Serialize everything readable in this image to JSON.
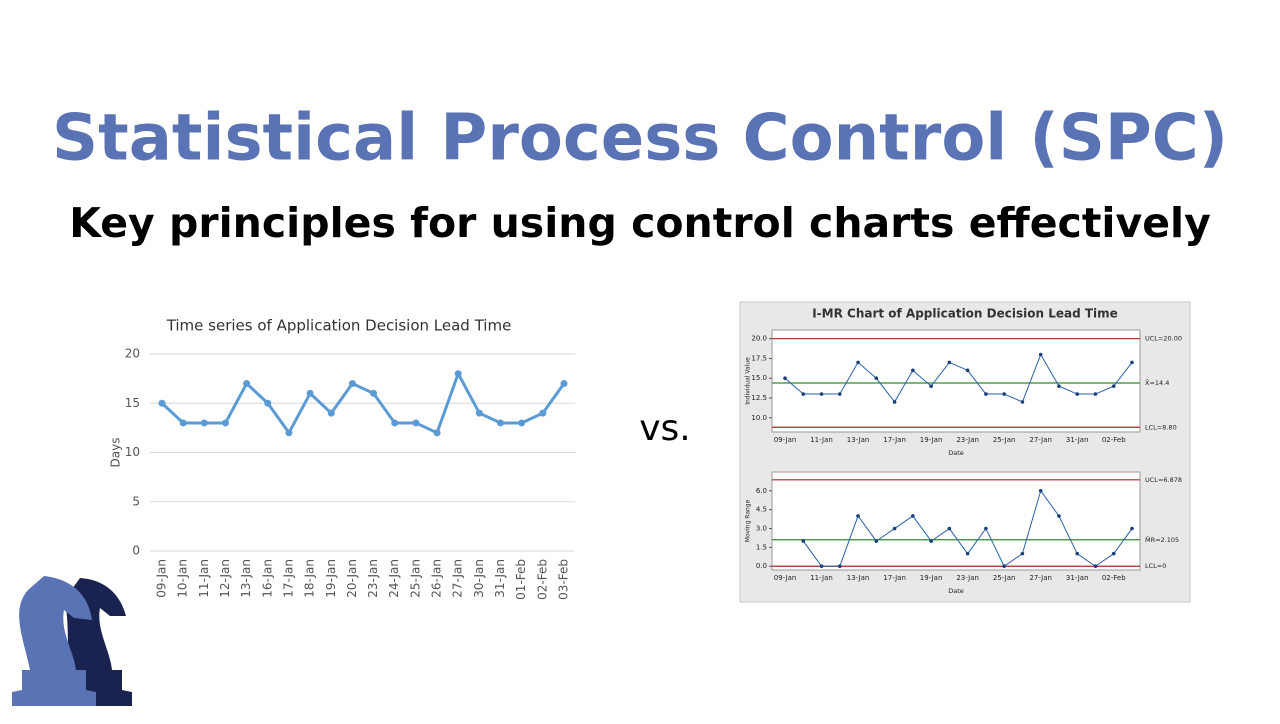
{
  "slide": {
    "title": "Statistical Process Control (SPC)",
    "subtitle": "Key principles for using control charts effectively",
    "separator": "vs."
  },
  "chart_data": [
    {
      "type": "line",
      "title": "Time series of Application Decision Lead Time",
      "y_label": "Days",
      "categories": [
        "09-Jan",
        "10-Jan",
        "11-Jan",
        "12-Jan",
        "13-Jan",
        "16-Jan",
        "17-Jan",
        "18-Jan",
        "19-Jan",
        "20-Jan",
        "23-Jan",
        "24-Jan",
        "25-Jan",
        "26-Jan",
        "27-Jan",
        "30-Jan",
        "31-Jan",
        "01-Feb",
        "02-Feb",
        "03-Feb"
      ],
      "series": [
        {
          "name": "Days",
          "color": "#5b9bd5",
          "values": [
            15,
            13,
            13,
            13,
            17,
            15,
            12,
            16,
            14,
            17,
            16,
            13,
            13,
            12,
            18,
            14,
            13,
            13,
            14,
            17
          ]
        }
      ],
      "ylim": [
        0,
        20
      ],
      "yticks": [
        0,
        5,
        10,
        15,
        20
      ],
      "grid": true
    },
    {
      "type": "line",
      "title": "I-MR Chart of Application Decision Lead Time",
      "y_label": "Individual Value",
      "x_label": "Date",
      "categories": [
        "09-Jan",
        null,
        "11-Jan",
        null,
        "13-Jan",
        null,
        "17-Jan",
        null,
        "19-Jan",
        null,
        "23-Jan",
        null,
        "25-Jan",
        null,
        "27-Jan",
        null,
        "31-Jan",
        null,
        "02-Feb",
        null
      ],
      "series": [
        {
          "name": "Individual Value",
          "color": "#2a62a8",
          "values": [
            15,
            13,
            13,
            13,
            17,
            15,
            12,
            16,
            14,
            17,
            16,
            13,
            13,
            12,
            18,
            14,
            13,
            13,
            14,
            17
          ]
        }
      ],
      "ylim": [
        8.2,
        21.1
      ],
      "yticks": [
        {
          "value": 10,
          "label": "10.0"
        },
        {
          "value": 12.5,
          "label": "12.5"
        },
        {
          "value": 15,
          "label": "15.0"
        },
        {
          "value": 17.5,
          "label": "17.5"
        },
        {
          "value": 20,
          "label": "20.0"
        }
      ],
      "reference_lines": [
        {
          "value": 20,
          "label": "UCL=20.00",
          "color": "#b22222"
        },
        {
          "value": 14.4,
          "label": "X̄=14.4",
          "color": "#2e8b2e"
        },
        {
          "value": 8.8,
          "label": "LCL=8.80",
          "color": "#b22222"
        }
      ]
    },
    {
      "type": "line",
      "y_label": "Moving Range",
      "x_label": "Date",
      "categories": [
        "09-Jan",
        null,
        "11-Jan",
        null,
        "13-Jan",
        null,
        "17-Jan",
        null,
        "19-Jan",
        null,
        "23-Jan",
        null,
        "25-Jan",
        null,
        "27-Jan",
        null,
        "31-Jan",
        null,
        "02-Feb",
        null
      ],
      "series": [
        {
          "name": "Moving Range",
          "color": "#2a62a8",
          "values": [
            null,
            2,
            0,
            0,
            4,
            2,
            3,
            4,
            2,
            3,
            1,
            3,
            0,
            1,
            6,
            4,
            1,
            0,
            1,
            3
          ]
        }
      ],
      "ylim": [
        -0.3,
        7.5
      ],
      "yticks": [
        {
          "value": 0,
          "label": "0.0"
        },
        {
          "value": 1.5,
          "label": "1.5"
        },
        {
          "value": 3,
          "label": "3.0"
        },
        {
          "value": 4.5,
          "label": "4.5"
        },
        {
          "value": 6,
          "label": "6.0"
        }
      ],
      "reference_lines": [
        {
          "value": 6.878,
          "label": "UCL=6.878",
          "color": "#b22222"
        },
        {
          "value": 2.105,
          "label": "M̄R=2.105",
          "color": "#2e8b2e"
        },
        {
          "value": 0,
          "label": "LCL=0",
          "color": "#b22222"
        }
      ]
    }
  ]
}
